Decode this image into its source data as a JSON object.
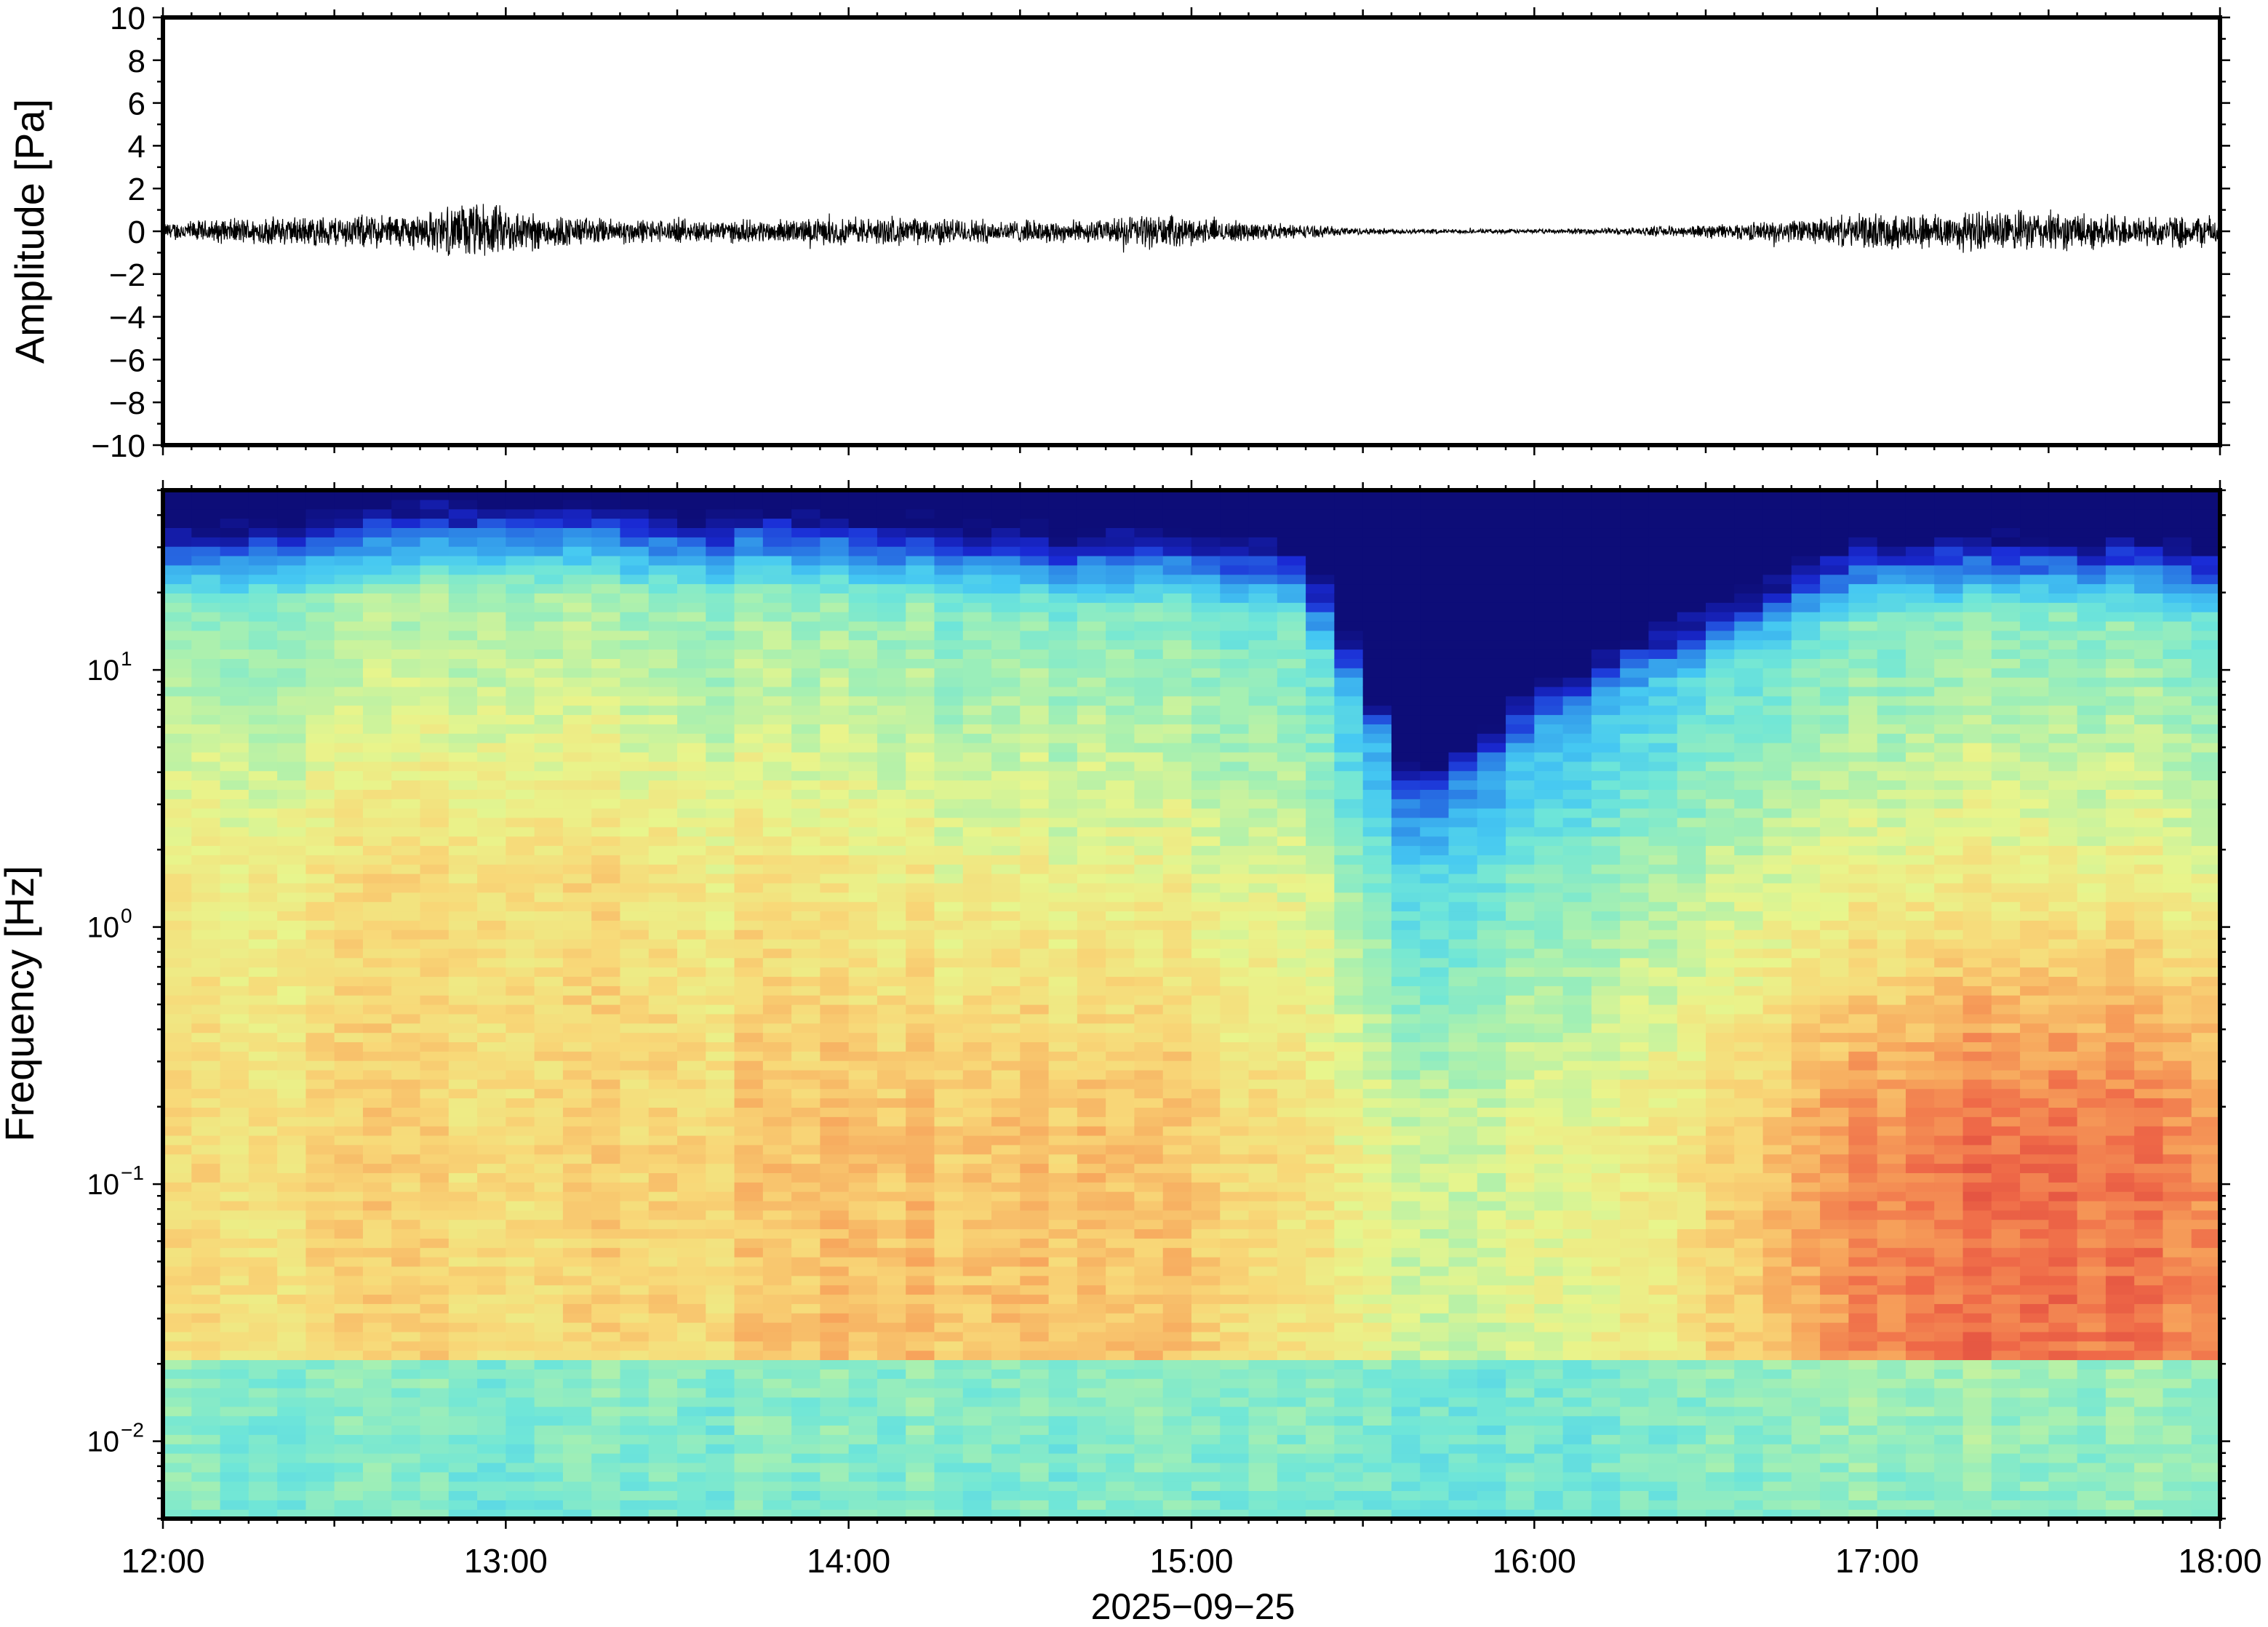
{
  "chart_data": [
    {
      "type": "line",
      "series": [
        {
          "name": "",
          "envelope": [
            {
              "t": 12.0,
              "a": 0.4
            },
            {
              "t": 12.25,
              "a": 0.6
            },
            {
              "t": 12.5,
              "a": 0.7
            },
            {
              "t": 12.75,
              "a": 0.8
            },
            {
              "t": 12.9,
              "a": 1.3
            },
            {
              "t": 13.0,
              "a": 1.1
            },
            {
              "t": 13.1,
              "a": 0.8
            },
            {
              "t": 13.25,
              "a": 0.6
            },
            {
              "t": 13.5,
              "a": 0.5
            },
            {
              "t": 13.75,
              "a": 0.5
            },
            {
              "t": 14.0,
              "a": 0.6
            },
            {
              "t": 14.25,
              "a": 0.6
            },
            {
              "t": 14.5,
              "a": 0.5
            },
            {
              "t": 14.75,
              "a": 0.5
            },
            {
              "t": 14.85,
              "a": 0.8
            },
            {
              "t": 15.0,
              "a": 0.6
            },
            {
              "t": 15.25,
              "a": 0.35
            },
            {
              "t": 15.5,
              "a": 0.15
            },
            {
              "t": 15.75,
              "a": 0.1
            },
            {
              "t": 16.0,
              "a": 0.1
            },
            {
              "t": 16.25,
              "a": 0.15
            },
            {
              "t": 16.5,
              "a": 0.3
            },
            {
              "t": 16.75,
              "a": 0.5
            },
            {
              "t": 17.0,
              "a": 0.8
            },
            {
              "t": 17.25,
              "a": 0.9
            },
            {
              "t": 17.5,
              "a": 0.9
            },
            {
              "t": 17.75,
              "a": 0.7
            },
            {
              "t": 18.0,
              "a": 0.7
            }
          ]
        }
      ],
      "ylabel": "Amplitude [Pa]",
      "ylim": [
        -10,
        10
      ],
      "yticks": [
        10,
        8,
        6,
        4,
        2,
        0,
        -2,
        -4,
        -6,
        -8,
        -10
      ],
      "ytick_labels": [
        "10",
        "8",
        "6",
        "4",
        "2",
        "0",
        "−2",
        "−4",
        "−6",
        "−8",
        "−10"
      ],
      "xlim": [
        "2025-09-25 12:00",
        "2025-09-25 18:00"
      ]
    },
    {
      "type": "heatmap",
      "ylabel": "Frequency [Hz]",
      "yscale": "log",
      "ylim": [
        0.005,
        50
      ],
      "yticks": [
        {
          "value": 10,
          "base": "10",
          "exp": "1"
        },
        {
          "value": 1,
          "base": "10",
          "exp": "0"
        },
        {
          "value": 0.1,
          "base": "10",
          "exp": "−1"
        },
        {
          "value": 0.01,
          "base": "10",
          "exp": "−2"
        }
      ],
      "colormap": "jet",
      "colors": [
        "#0d0d78",
        "#1a2bd6",
        "#2f8fe8",
        "#45c8f2",
        "#6fe6d8",
        "#a8f0b0",
        "#e8f58c",
        "#f8d878",
        "#f7a65c",
        "#ef6a48",
        "#d83a3a"
      ],
      "power_profile": [
        {
          "t": 12.0,
          "top": 38,
          "mid": 0.62,
          "low": 0.66,
          "floor": 0.42
        },
        {
          "t": 12.5,
          "top": 42,
          "mid": 0.66,
          "low": 0.7,
          "floor": 0.42
        },
        {
          "t": 13.0,
          "top": 45,
          "mid": 0.7,
          "low": 0.7,
          "floor": 0.42
        },
        {
          "t": 13.5,
          "top": 42,
          "mid": 0.66,
          "low": 0.7,
          "floor": 0.42
        },
        {
          "t": 14.0,
          "top": 42,
          "mid": 0.64,
          "low": 0.74,
          "floor": 0.42
        },
        {
          "t": 14.5,
          "top": 38,
          "mid": 0.62,
          "low": 0.74,
          "floor": 0.42
        },
        {
          "t": 15.0,
          "top": 38,
          "mid": 0.62,
          "low": 0.74,
          "floor": 0.44
        },
        {
          "t": 15.3,
          "top": 35,
          "mid": 0.58,
          "low": 0.66,
          "floor": 0.42
        },
        {
          "t": 15.5,
          "top": 14,
          "mid": 0.44,
          "low": 0.6,
          "floor": 0.4
        },
        {
          "t": 15.65,
          "top": 6,
          "mid": 0.34,
          "low": 0.56,
          "floor": 0.4
        },
        {
          "t": 15.9,
          "top": 10,
          "mid": 0.42,
          "low": 0.58,
          "floor": 0.4
        },
        {
          "t": 16.3,
          "top": 18,
          "mid": 0.5,
          "low": 0.64,
          "floor": 0.42
        },
        {
          "t": 16.6,
          "top": 24,
          "mid": 0.56,
          "low": 0.72,
          "floor": 0.44
        },
        {
          "t": 17.0,
          "top": 36,
          "mid": 0.62,
          "low": 0.86,
          "floor": 0.46
        },
        {
          "t": 17.5,
          "top": 36,
          "mid": 0.64,
          "low": 0.9,
          "floor": 0.46
        },
        {
          "t": 18.0,
          "top": 34,
          "mid": 0.6,
          "low": 0.84,
          "floor": 0.46
        }
      ]
    }
  ],
  "x_axis": {
    "tick_labels": [
      "12:00",
      "13:00",
      "14:00",
      "15:00",
      "16:00",
      "17:00",
      "18:00"
    ],
    "date_label": "2025−09−25"
  }
}
